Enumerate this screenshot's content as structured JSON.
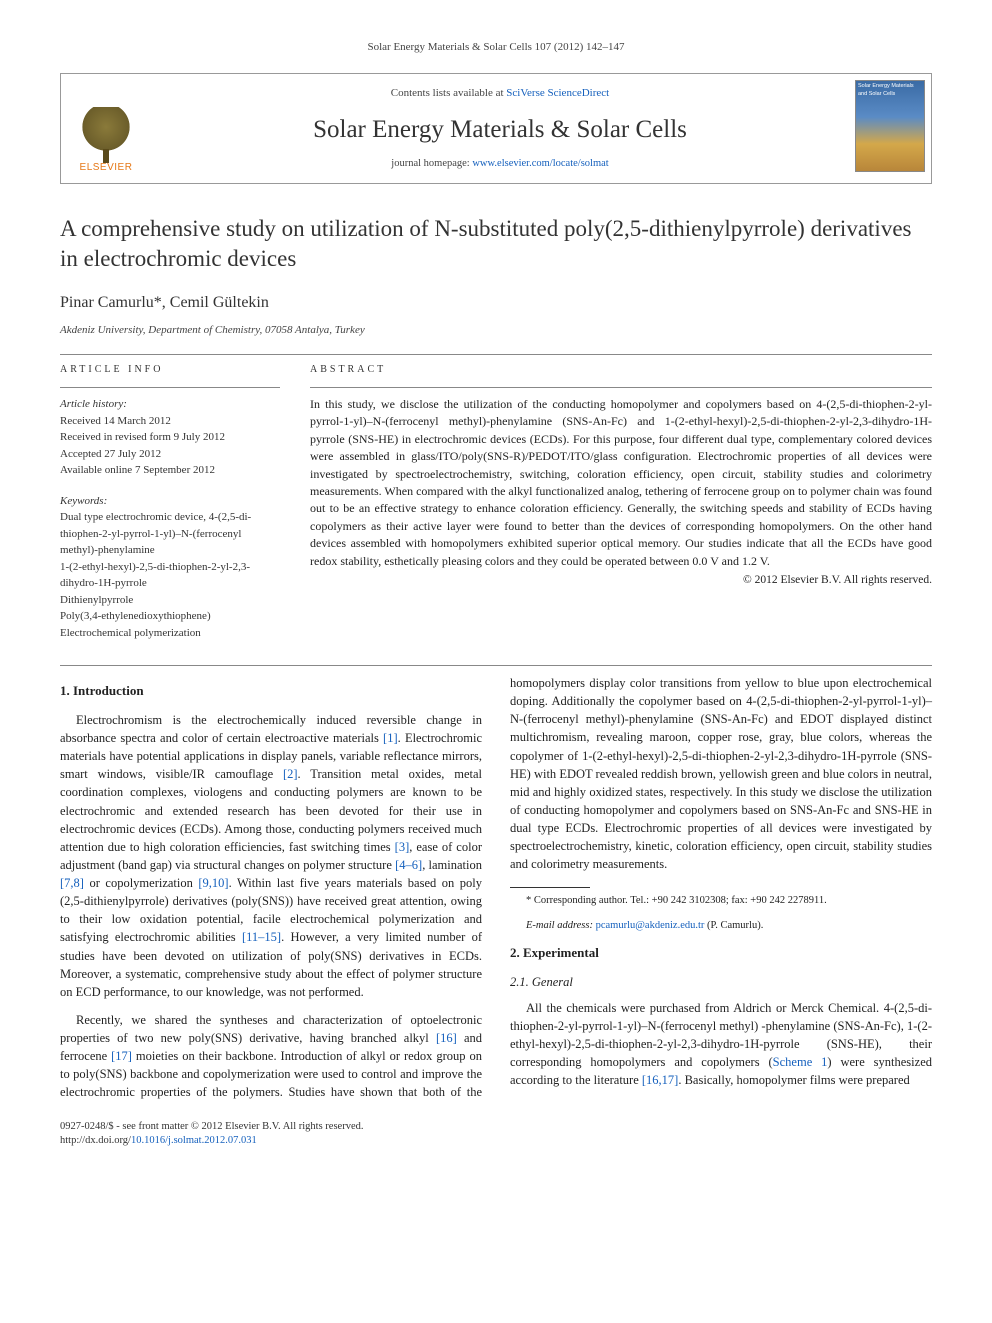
{
  "journal_ref": "Solar Energy Materials & Solar Cells 107 (2012) 142–147",
  "header": {
    "contents_prefix": "Contents lists available at ",
    "contents_link": "SciVerse ScienceDirect",
    "journal_name": "Solar Energy Materials & Solar Cells",
    "homepage_prefix": "journal homepage: ",
    "homepage_link": "www.elsevier.com/locate/solmat",
    "publisher": "ELSEVIER",
    "cover_label": "Solar Energy Materials and Solar Cells"
  },
  "title": "A comprehensive study on utilization of N-substituted poly(2,5-dithienylpyrrole) derivatives in electrochromic devices",
  "authors": "Pinar Camurlu*, Cemil Gültekin",
  "affiliation": "Akdeniz University, Department of Chemistry, 07058 Antalya, Turkey",
  "article_info_label": "ARTICLE INFO",
  "abstract_label": "ABSTRACT",
  "history": {
    "heading": "Article history:",
    "received": "Received 14 March 2012",
    "revised": "Received in revised form 9 July 2012",
    "accepted": "Accepted 27 July 2012",
    "online": "Available online 7 September 2012"
  },
  "keywords": {
    "heading": "Keywords:",
    "k1": "Dual type electrochromic device, 4-(2,5-di-thiophen-2-yl-pyrrol-1-yl)–N-(ferrocenyl methyl)-phenylamine",
    "k2": "1-(2-ethyl-hexyl)-2,5-di-thiophen-2-yl-2,3-dihydro-1H-pyrrole",
    "k3": "Dithienylpyrrole",
    "k4": "Poly(3,4-ethylenedioxythiophene)",
    "k5": "Electrochemical polymerization"
  },
  "abstract": "In this study, we disclose the utilization of the conducting homopolymer and copolymers based on 4-(2,5-di-thiophen-2-yl-pyrrol-1-yl)–N-(ferrocenyl methyl)-phenylamine (SNS-An-Fc) and 1-(2-ethyl-hexyl)-2,5-di-thiophen-2-yl-2,3-dihydro-1H-pyrrole (SNS-HE) in electrochromic devices (ECDs). For this purpose, four different dual type, complementary colored devices were assembled in glass/ITO/poly(SNS-R)/PEDOT/ITO/glass configuration. Electrochromic properties of all devices were investigated by spectroelectrochemistry, switching, coloration efficiency, open circuit, stability studies and colorimetry measurements. When compared with the alkyl functionalized analog, tethering of ferrocene group on to polymer chain was found out to be an effective strategy to enhance coloration efficiency. Generally, the switching speeds and stability of ECDs having copolymers as their active layer were found to better than the devices of corresponding homopolymers. On the other hand devices assembled with homopolymers exhibited superior optical memory. Our studies indicate that all the ECDs have good redox stability, esthetically pleasing colors and they could be operated between 0.0 V and 1.2 V.",
  "copyright": "© 2012 Elsevier B.V. All rights reserved.",
  "sections": {
    "intro_heading": "1. Introduction",
    "intro_p1a": "Electrochromism is the electrochemically induced reversible change in absorbance spectra and color of certain electroactive materials ",
    "ref1": "[1]",
    "intro_p1b": ". Electrochromic materials have potential applications in display panels, variable reflectance mirrors, smart windows, visible/IR camouflage ",
    "ref2": "[2]",
    "intro_p1c": ". Transition metal oxides, metal coordination complexes, viologens and conducting polymers are known to be electrochromic and extended research has been devoted for their use in electrochromic devices (ECDs). Among those, conducting polymers received much attention due to high coloration efficiencies, fast switching times ",
    "ref3": "[3]",
    "intro_p1d": ", ease of color adjustment (band gap) via structural changes on polymer structure ",
    "ref46": "[4–6]",
    "intro_p1e": ", lamination ",
    "ref78": "[7,8]",
    "intro_p1f": " or copolymerization ",
    "ref910": "[9,10]",
    "intro_p1g": ". Within last five years materials based on poly (2,5-dithienylpyrrole) derivatives (poly(SNS)) have received great attention, owing to their low oxidation potential, facile electrochemical polymerization and satisfying electrochromic abilities ",
    "ref1115": "[11–15]",
    "intro_p1h": ". However, a very limited number of studies have been devoted on utilization of poly(SNS) derivatives in ECDs. Moreover, a systematic, comprehensive study about the effect of polymer structure on ECD performance, to our knowledge, was not performed.",
    "intro_p2a": "Recently, we shared the syntheses and characterization of optoelectronic properties of two new poly(SNS) derivative, having branched alkyl ",
    "ref16": "[16]",
    "intro_p2b": " and ferrocene ",
    "ref17": "[17]",
    "intro_p2c": " moieties on their backbone. Introduction of alkyl or redox group on to poly(SNS) backbone and copolymerization were used to control and improve the electrochromic properties of the polymers. Studies have shown that both of the homopolymers display color transitions from yellow to blue upon electrochemical doping. Additionally the copolymer based on 4-(2,5-di-thiophen-2-yl-pyrrol-1-yl)–N-(ferrocenyl methyl)-phenylamine (SNS-An-Fc) and EDOT displayed distinct multichromism, revealing maroon, copper rose, gray, blue colors, whereas the copolymer of 1-(2-ethyl-hexyl)-2,5-di-thiophen-2-yl-2,3-dihydro-1H-pyrrole (SNS-HE) with EDOT revealed reddish brown, yellowish green and blue colors in neutral, mid and highly oxidized states, respectively. In this study we disclose the utilization of conducting homopolymer and copolymers based on SNS-An-Fc and SNS-HE in dual type ECDs. Electrochromic properties of all devices were investigated by spectroelectrochemistry, kinetic, coloration efficiency, open circuit, stability studies and colorimetry measurements.",
    "exp_heading": "2. Experimental",
    "exp_sub": "2.1. General",
    "exp_p1a": "All the chemicals were purchased from Aldrich or Merck Chemical. 4-(2,5-di-thiophen-2-yl-pyrrol-1-yl)–N-(ferrocenyl methyl) -phenylamine (SNS-An-Fc), 1-(2-ethyl-hexyl)-2,5-di-thiophen-2-yl-2,3-dihydro-1H-pyrrole (SNS-HE), their corresponding homopolymers and copolymers (",
    "scheme1": "Scheme 1",
    "exp_p1b": ") were synthesized according to the literature ",
    "ref1617": "[16,17]",
    "exp_p1c": ". Basically, homopolymer films were prepared"
  },
  "footnote": {
    "corr": "* Corresponding author. Tel.: +90 242 3102308; fax: +90 242 2278911.",
    "email_label": "E-mail address: ",
    "email": "pcamurlu@akdeniz.edu.tr",
    "email_who": " (P. Camurlu)."
  },
  "footer": {
    "issn": "0927-0248/$ - see front matter © 2012 Elsevier B.V. All rights reserved.",
    "doi_label": "http://dx.doi.org/",
    "doi": "10.1016/j.solmat.2012.07.031"
  },
  "colors": {
    "link": "#1560bd",
    "publisher": "#e67817",
    "text": "#222222",
    "rule": "#888888"
  }
}
